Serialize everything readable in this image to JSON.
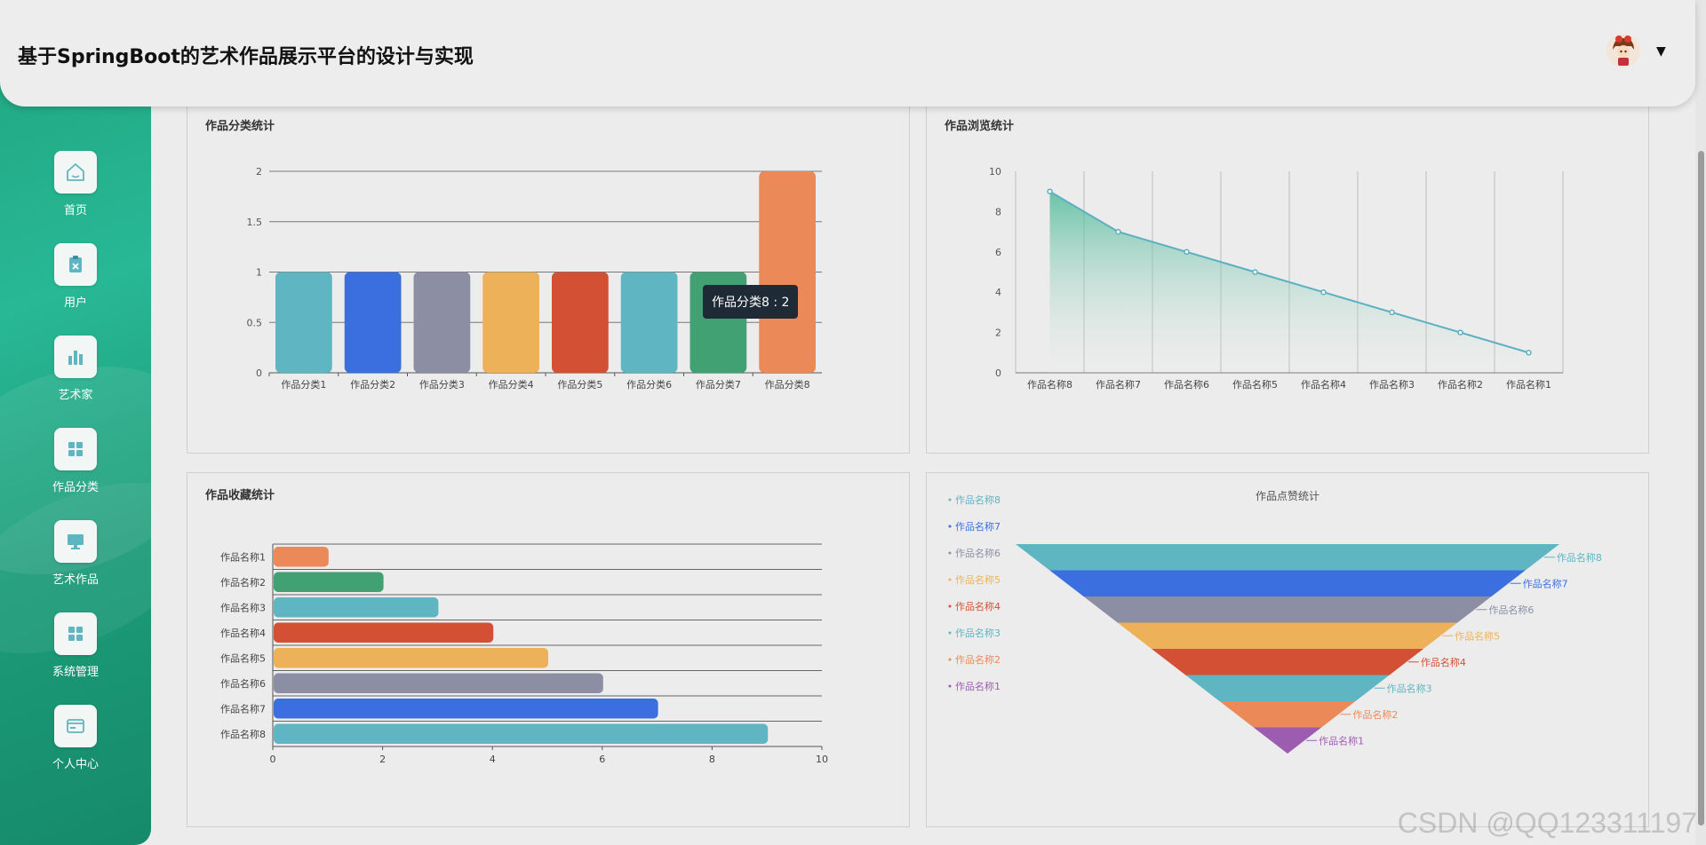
{
  "header": {
    "title": "基于SpringBoot的艺术作品展示平台的设计与实现"
  },
  "sidebar": {
    "items": [
      {
        "label": "首页",
        "icon": "home-icon"
      },
      {
        "label": "用户",
        "icon": "clipboard-icon"
      },
      {
        "label": "艺术家",
        "icon": "bar-chart-icon"
      },
      {
        "label": "作品分类",
        "icon": "grid-icon"
      },
      {
        "label": "艺术作品",
        "icon": "monitor-icon"
      },
      {
        "label": "系统管理",
        "icon": "grid-icon"
      },
      {
        "label": "个人中心",
        "icon": "card-icon"
      }
    ]
  },
  "panels": {
    "category": {
      "title": "作品分类统计"
    },
    "views": {
      "title": "作品浏览统计"
    },
    "favorites": {
      "title": "作品收藏统计"
    },
    "likes": {
      "title": "作品点赞统计"
    }
  },
  "tooltip": {
    "text": "作品分类8 : 2"
  },
  "watermark": "CSDN @QQ123311197",
  "colors": {
    "palette": [
      "#5fb5c2",
      "#3b6fe0",
      "#8c8fa4",
      "#edb259",
      "#d35035",
      "#5fb5c2",
      "#41a173",
      "#ec8958",
      "#9c5db0"
    ],
    "line": "#5ab0c0",
    "accent": "#1fa57e"
  },
  "chart_data": [
    {
      "type": "bar",
      "title": "作品分类统计",
      "categories": [
        "作品分类1",
        "作品分类2",
        "作品分类3",
        "作品分类4",
        "作品分类5",
        "作品分类6",
        "作品分类7",
        "作品分类8"
      ],
      "values": [
        1,
        1,
        1,
        1,
        1,
        1,
        1,
        2
      ],
      "ylim": [
        0,
        2
      ],
      "yticks": [
        "0",
        "0.5",
        "1",
        "1.5",
        "2"
      ]
    },
    {
      "type": "area",
      "title": "作品浏览统计",
      "categories": [
        "作品名称8",
        "作品名称7",
        "作品名称6",
        "作品名称5",
        "作品名称4",
        "作品名称3",
        "作品名称2",
        "作品名称1"
      ],
      "values": [
        9,
        7,
        6,
        5,
        4,
        3,
        2,
        1
      ],
      "ylim": [
        0,
        10
      ],
      "yticks": [
        "0",
        "2",
        "4",
        "6",
        "8",
        "10"
      ]
    },
    {
      "type": "bar",
      "orientation": "horizontal",
      "title": "作品收藏统计",
      "categories": [
        "作品名称1",
        "作品名称2",
        "作品名称3",
        "作品名称4",
        "作品名称5",
        "作品名称6",
        "作品名称7",
        "作品名称8"
      ],
      "values": [
        1,
        2,
        3,
        4,
        5,
        6,
        7,
        9
      ],
      "xlim": [
        0,
        10
      ],
      "xticks": [
        "0",
        "2",
        "4",
        "6",
        "8",
        "10"
      ]
    },
    {
      "type": "funnel",
      "title": "作品点赞统计",
      "categories": [
        "作品名称8",
        "作品名称7",
        "作品名称6",
        "作品名称5",
        "作品名称4",
        "作品名称3",
        "作品名称2",
        "作品名称1"
      ],
      "values": [
        8,
        7,
        6,
        5,
        4,
        3,
        2,
        1
      ],
      "legend": [
        "作品名称8",
        "作品名称7",
        "作品名称6",
        "作品名称5",
        "作品名称4",
        "作品名称3",
        "作品名称2",
        "作品名称1"
      ]
    }
  ]
}
